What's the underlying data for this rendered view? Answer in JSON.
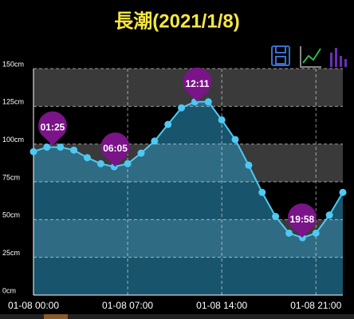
{
  "chart_data": {
    "type": "line",
    "title": "長潮(2021/1/8)",
    "x": [
      0,
      1,
      2,
      3,
      4,
      5,
      6,
      7,
      8,
      9,
      10,
      11,
      12,
      13,
      14,
      15,
      16,
      17,
      18,
      19,
      20,
      21,
      22,
      23
    ],
    "values": [
      95,
      98,
      98,
      96,
      91,
      87,
      85,
      87,
      94,
      102,
      113,
      124,
      128,
      128,
      116,
      103,
      86,
      68,
      52,
      41,
      38,
      41,
      53,
      68
    ],
    "color": "#4fc8f3",
    "xlim": [
      0,
      23
    ],
    "xticks": [
      {
        "value": 0,
        "label": "01-08 00:00"
      },
      {
        "value": 7,
        "label": "01-08 07:00"
      },
      {
        "value": 14,
        "label": "01-08 14:00"
      },
      {
        "value": 21,
        "label": "01-08 21:00"
      }
    ],
    "ylim": [
      0,
      150
    ],
    "yticks": [
      {
        "value": 0,
        "label": "0cm"
      },
      {
        "value": 25,
        "label": "25cm"
      },
      {
        "value": 50,
        "label": "50cm"
      },
      {
        "value": 75,
        "label": "75cm"
      },
      {
        "value": 100,
        "label": "100cm"
      },
      {
        "value": 125,
        "label": "125cm"
      },
      {
        "value": 150,
        "label": "150cm"
      }
    ],
    "grid": true,
    "annotations": [
      {
        "label": "01:25",
        "x": 1.42,
        "y": 99
      },
      {
        "label": "06:05",
        "x": 6.08,
        "y": 85
      },
      {
        "label": "12:11",
        "x": 12.18,
        "y": 128
      },
      {
        "label": "19:58",
        "x": 19.97,
        "y": 38
      }
    ]
  }
}
